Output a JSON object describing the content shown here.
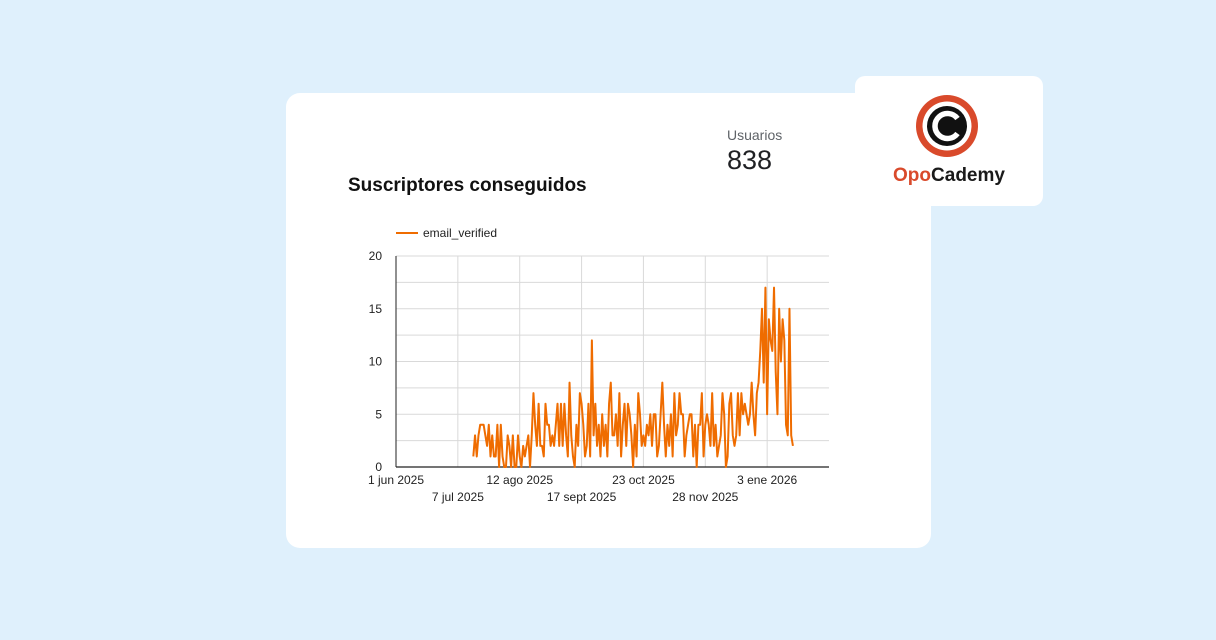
{
  "metric": {
    "label": "Usuarios",
    "value": "838"
  },
  "logo": {
    "text_part1": "Opo",
    "text_part2": "Cademy",
    "brand_color": "#d94a2b"
  },
  "chart_data": {
    "type": "line",
    "title": "Suscriptores conseguidos",
    "legend": "top-left",
    "grid": true,
    "ylim": [
      0,
      20
    ],
    "yticks": [
      "0",
      "5",
      "10",
      "15",
      "20"
    ],
    "xlim": [
      "2025-06-01",
      "2026-02-08"
    ],
    "xticks": [
      {
        "date": "2025-06-01",
        "label": "1 jun 2025",
        "row": 0
      },
      {
        "date": "2025-07-07",
        "label": "7 jul 2025",
        "row": 1
      },
      {
        "date": "2025-08-12",
        "label": "12 ago 2025",
        "row": 0
      },
      {
        "date": "2025-09-17",
        "label": "17 sept 2025",
        "row": 1
      },
      {
        "date": "2025-10-23",
        "label": "23 oct 2025",
        "row": 0
      },
      {
        "date": "2025-11-28",
        "label": "28 nov 2025",
        "row": 1
      },
      {
        "date": "2026-01-03",
        "label": "3 ene 2026",
        "row": 0
      }
    ],
    "series": [
      {
        "name": "email_verified",
        "color": "#ef6c00",
        "start": "2025-07-16",
        "values": [
          1,
          3,
          1,
          3,
          4,
          4,
          4,
          3,
          2,
          4,
          1,
          3,
          1,
          1,
          4,
          0,
          4,
          1,
          0,
          0,
          3,
          2,
          0,
          3,
          0,
          0,
          3,
          1,
          0,
          2,
          1,
          2,
          3,
          0,
          3,
          7,
          4,
          2,
          6,
          2,
          2,
          1,
          6,
          4,
          4,
          2,
          3,
          2,
          4,
          6,
          2,
          6,
          2,
          6,
          3,
          1,
          8,
          3,
          1,
          0,
          4,
          2,
          7,
          6,
          4,
          1,
          2,
          6,
          1,
          12,
          3,
          6,
          2,
          4,
          1,
          5,
          2,
          4,
          1,
          6,
          8,
          3,
          3,
          5,
          2,
          7,
          1,
          4,
          6,
          2,
          6,
          5,
          3,
          0,
          4,
          1,
          7,
          5,
          2,
          3,
          2,
          4,
          3,
          5,
          2,
          5,
          5,
          1,
          2,
          5,
          8,
          4,
          1,
          4,
          2,
          5,
          1,
          7,
          3,
          4,
          7,
          5,
          5,
          1,
          3,
          4,
          5,
          5,
          1,
          4,
          0,
          4,
          4,
          7,
          1,
          4,
          5,
          4,
          2,
          7,
          2,
          4,
          1,
          2,
          3,
          7,
          5,
          0,
          1,
          6,
          7,
          3,
          2,
          3,
          7,
          3,
          7,
          5,
          6,
          5,
          4,
          5,
          8,
          5,
          3,
          7,
          8,
          11,
          15,
          8,
          17,
          5,
          14,
          12,
          11,
          17,
          9,
          5,
          15,
          10,
          14,
          12,
          4,
          3,
          15,
          3,
          2
        ]
      }
    ]
  }
}
